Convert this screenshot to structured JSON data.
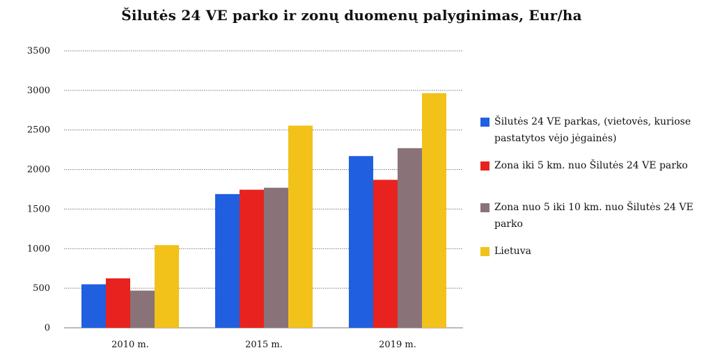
{
  "chart_data": {
    "type": "bar",
    "title": "Šilutės 24 VE parko ir zonų duomenų palyginimas, Eur/ha",
    "categories": [
      "2010 m.",
      "2015 m.",
      "2019 m."
    ],
    "yticks": [
      "0",
      "500",
      "1000",
      "1500",
      "2000",
      "2500",
      "3000",
      "3500"
    ],
    "ylim": [
      0,
      3500
    ],
    "grid": true,
    "legend_position": "right",
    "series": [
      {
        "name": "Šilutės 24 VE parkas, (vietovės, kuriose pastatytos vėjo jėgainės)",
        "color": "#1f5fe0",
        "values": [
          550,
          1690,
          2170
        ]
      },
      {
        "name": "Zona iki 5 km. nuo Šilutės 24 VE parko",
        "color": "#e8231f",
        "values": [
          625,
          1745,
          1870
        ]
      },
      {
        "name": "Zona nuo 5 iki 10 km. nuo Šilutės 24 VE parko",
        "color": "#8a7378",
        "values": [
          470,
          1770,
          2270
        ]
      },
      {
        "name": "Lietuva",
        "color": "#f2c21a",
        "values": [
          1045,
          2555,
          2965
        ]
      }
    ]
  }
}
